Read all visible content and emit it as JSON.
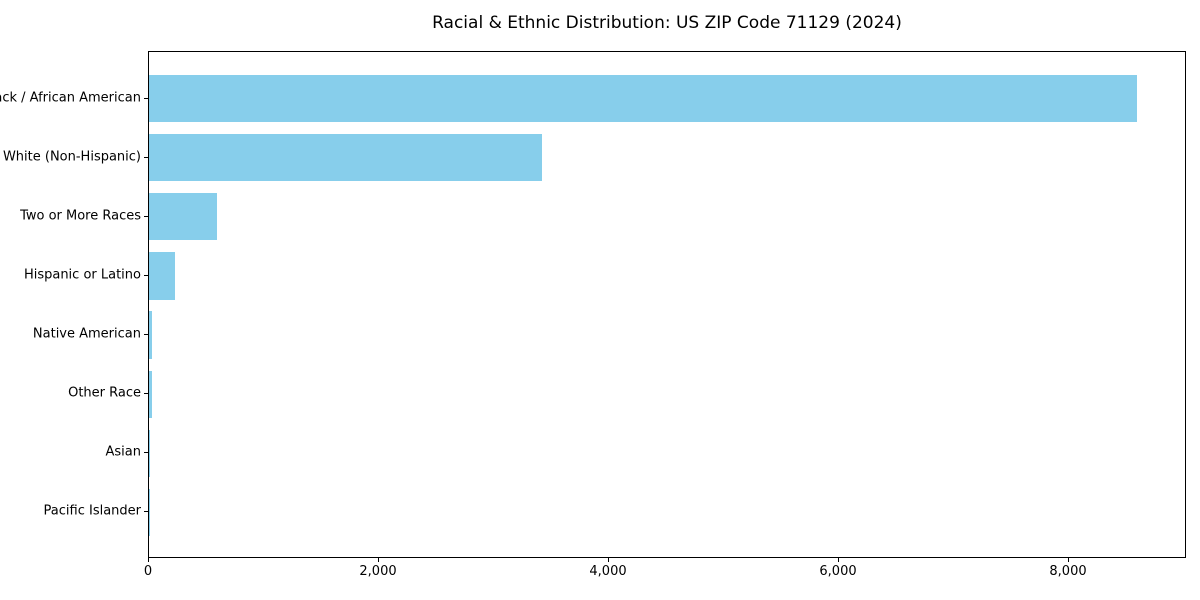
{
  "chart_data": {
    "type": "bar",
    "orientation": "horizontal",
    "title": "Racial & Ethnic Distribution: US ZIP Code 71129 (2024)",
    "xlabel": "",
    "ylabel": "",
    "categories": [
      "Black / African American",
      "White (Non-Hispanic)",
      "Two or More Races",
      "Hispanic or Latino",
      "Native American",
      "Other Race",
      "Asian",
      "Pacific Islander"
    ],
    "values": [
      8590,
      3420,
      590,
      225,
      26,
      30,
      6,
      2
    ],
    "xlim": [
      0,
      9026
    ],
    "x_ticks": [
      0,
      2000,
      4000,
      6000,
      8000
    ],
    "x_tick_labels": [
      "0",
      "2,000",
      "4,000",
      "6,000",
      "8,000"
    ],
    "grid": false,
    "legend": "none",
    "bar_color": "#87CEEB",
    "axis_color": "#000000",
    "background_color": "#ffffff"
  }
}
